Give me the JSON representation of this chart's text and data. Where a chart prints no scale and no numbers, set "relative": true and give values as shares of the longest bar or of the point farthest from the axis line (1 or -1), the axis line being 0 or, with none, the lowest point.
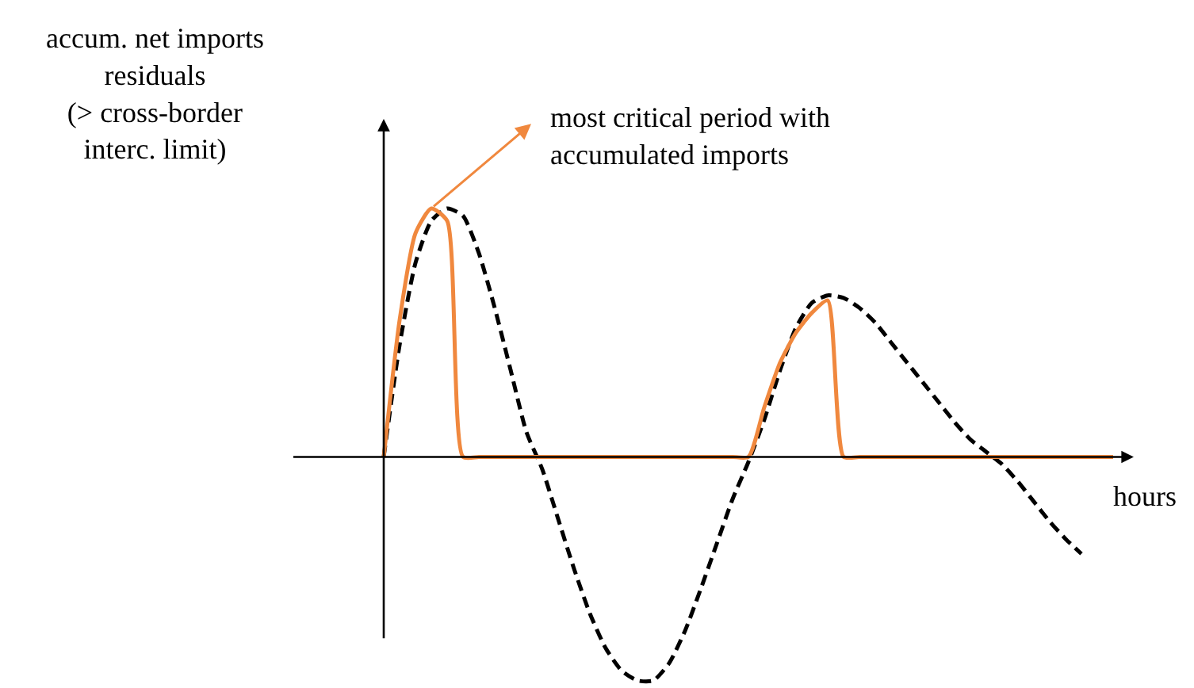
{
  "chart_data": {
    "type": "line",
    "relative": true,
    "xlabel": "hours",
    "ylabel": "accum. net imports\nresiduals\n(> cross-border\ninterc. limit)",
    "annotations": [
      "most critical period with\naccumulated imports"
    ],
    "categories": [
      null,
      null,
      null,
      null,
      null,
      null,
      null,
      null,
      null,
      null,
      null,
      null,
      null,
      null,
      null,
      null,
      null,
      null,
      null,
      null,
      null,
      null,
      null,
      null,
      null,
      null,
      null,
      null,
      null,
      null,
      null,
      null,
      null,
      null,
      null,
      null,
      null,
      null,
      null,
      null,
      null,
      null,
      null,
      null,
      null,
      null,
      null
    ],
    "series": [
      {
        "color": "#000000",
        "line_style": "dashed",
        "values": [
          0,
          0.45,
          0.78,
          0.95,
          1.0,
          0.97,
          0.82,
          0.6,
          0.35,
          0.1,
          -0.05,
          -0.25,
          -0.45,
          -0.63,
          -0.77,
          -0.86,
          -0.9,
          -0.9,
          -0.83,
          -0.7,
          -0.53,
          -0.35,
          -0.17,
          -0.02,
          0.15,
          0.35,
          0.52,
          0.62,
          0.65,
          0.64,
          0.6,
          0.54,
          0.46,
          0.38,
          0.3,
          0.22,
          0.14,
          0.07,
          0.02,
          -0.03,
          -0.1,
          -0.18,
          -0.26,
          -0.33,
          -0.39,
          null,
          null
        ]
      },
      {
        "color": "#f0883e",
        "line_style": "solid",
        "values": [
          0,
          0.55,
          0.9,
          1.0,
          0.95,
          0,
          0,
          0,
          0,
          0,
          0,
          0,
          0,
          0,
          0,
          0,
          0,
          0,
          0,
          0,
          0,
          0,
          0,
          0,
          0.2,
          0.38,
          0.5,
          0.58,
          0.63,
          0,
          0,
          0,
          0,
          0,
          0,
          0,
          0,
          0,
          0,
          0,
          0,
          0,
          0,
          0,
          0,
          0,
          0
        ]
      }
    ]
  }
}
